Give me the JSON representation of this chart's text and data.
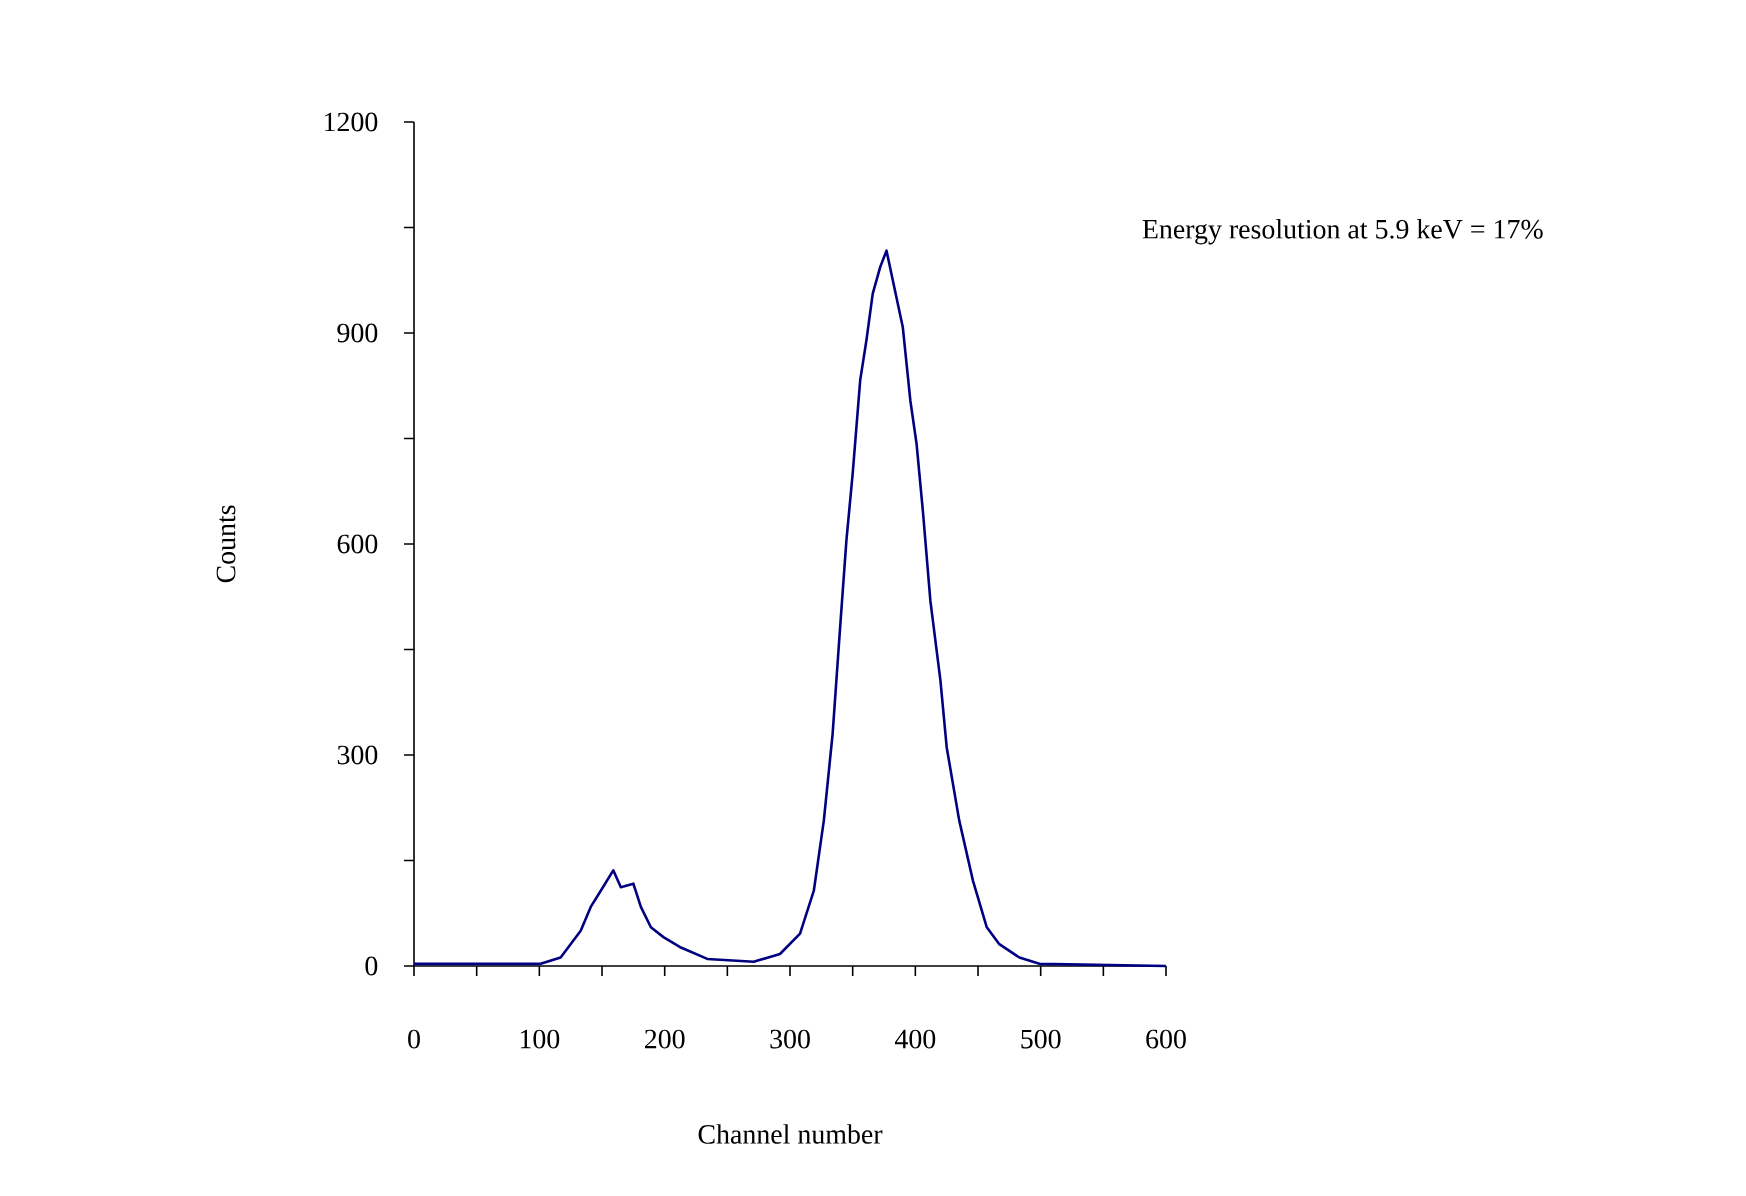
{
  "chart_data": {
    "type": "line",
    "xlabel": "Channel number",
    "ylabel": "Counts",
    "annotations": [
      "Energy resolution at 5.9 keV = 17%"
    ],
    "xlim": [
      0,
      600
    ],
    "ylim": [
      0,
      1200
    ],
    "xticks": [
      0,
      {
        "value": 50,
        "label": null
      },
      100,
      {
        "value": 150,
        "label": null
      },
      200,
      {
        "value": 250,
        "label": null
      },
      300,
      {
        "value": 350,
        "label": null
      },
      400,
      {
        "value": 450,
        "label": null
      },
      500,
      {
        "value": 550,
        "label": null
      },
      600
    ],
    "yticks": [
      0,
      {
        "value": 150,
        "label": null
      },
      300,
      {
        "value": 450,
        "label": null
      },
      600,
      {
        "value": 750,
        "label": null
      },
      900,
      {
        "value": 1050,
        "label": null
      },
      1200
    ],
    "series": [
      {
        "color": "#000080",
        "x": [
          0,
          101,
          117,
          133,
          141,
          149,
          159,
          165,
          175,
          181,
          189,
          199,
          212,
          234,
          271,
          292,
          308,
          319,
          327,
          334,
          340,
          345,
          350,
          356,
          361,
          366,
          372,
          377,
          382,
          390,
          396,
          401,
          406,
          412,
          420,
          425,
          435,
          446,
          457,
          467,
          483,
          499,
          600
        ],
        "values": [
          3,
          3,
          12,
          50,
          84,
          107,
          136,
          112,
          117,
          84,
          55,
          41,
          27,
          10,
          6,
          17,
          46,
          107,
          207,
          330,
          482,
          605,
          700,
          833,
          890,
          956,
          994,
          1017,
          975,
          908,
          804,
          742,
          647,
          519,
          406,
          311,
          207,
          121,
          55,
          31,
          12,
          3,
          0
        ]
      }
    ]
  }
}
